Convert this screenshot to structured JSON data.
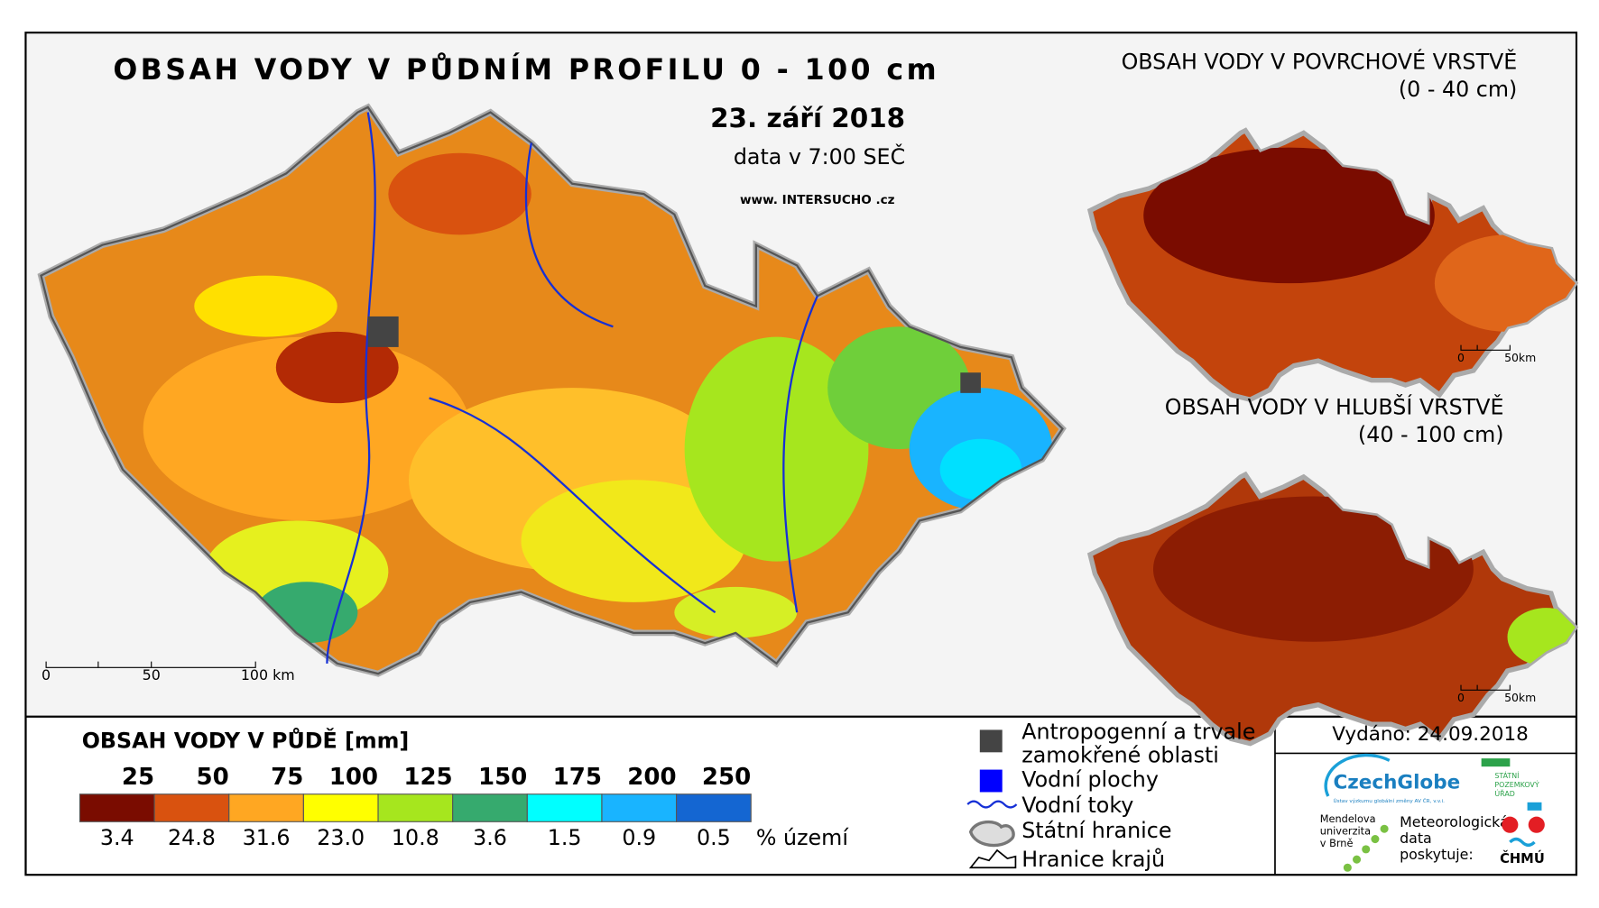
{
  "main_map": {
    "title": "OBSAH VODY V PŮDNÍM PROFILU 0 - 100 cm",
    "date": "23. září 2018",
    "data_time": "data v 7:00 SEČ",
    "website": "www. INTERSUCHO .cz",
    "scale": [
      "0",
      "50",
      "100 km"
    ]
  },
  "surface_map": {
    "title": [
      "OBSAH VODY V POVRCHOVÉ VRSTVĚ",
      "(0 - 40 cm)"
    ],
    "scale": [
      "0",
      "50km"
    ]
  },
  "deep_map": {
    "title": [
      "OBSAH VODY V HLUBŠÍ VRSTVĚ",
      "(40 - 100 cm)"
    ],
    "scale": [
      "0",
      "50km"
    ]
  },
  "legend": {
    "title": "OBSAH VODY V PŮDĚ [mm]",
    "unit": "% území",
    "classes": [
      {
        "upper": "25",
        "percent": "3.4",
        "color": "#7a0c00"
      },
      {
        "upper": "50",
        "percent": "24.8",
        "color": "#d9520f"
      },
      {
        "upper": "75",
        "percent": "31.6",
        "color": "#ffa722"
      },
      {
        "upper": "100",
        "percent": "23.0",
        "color": "#ffff00"
      },
      {
        "upper": "125",
        "percent": "10.8",
        "color": "#a6e61e"
      },
      {
        "upper": "150",
        "percent": "3.6",
        "color": "#36aa6e"
      },
      {
        "upper": "175",
        "percent": "1.5",
        "color": "#00ffff"
      },
      {
        "upper": "200",
        "percent": "0.9",
        "color": "#19b4ff"
      },
      {
        "upper": "250",
        "percent": "0.5",
        "color": "#1466d2"
      }
    ]
  },
  "symbols": {
    "items": [
      [
        "Antropogenní a trvale",
        "zamokřené oblasti"
      ],
      [
        "Vodní plochy"
      ],
      [
        "Vodní toky"
      ],
      [
        "Státní hranice"
      ],
      [
        "Hranice krajů"
      ]
    ]
  },
  "issued": "Vydáno: 24.09.2018",
  "logos": {
    "czechglobe": "CzechGlobe",
    "czechglobe_sub": "Ústav výzkumu globální změny AV ČR, v.v.i.",
    "mendel": [
      "Mendelova",
      "univerzita",
      "v Brně"
    ],
    "spu": [
      "STÁTNÍ",
      "POZEMKOVÝ",
      "ÚŘAD"
    ],
    "meteo": [
      "Meteorologická",
      "data",
      "poskytuje:"
    ],
    "chmu": "ČHMÚ"
  }
}
